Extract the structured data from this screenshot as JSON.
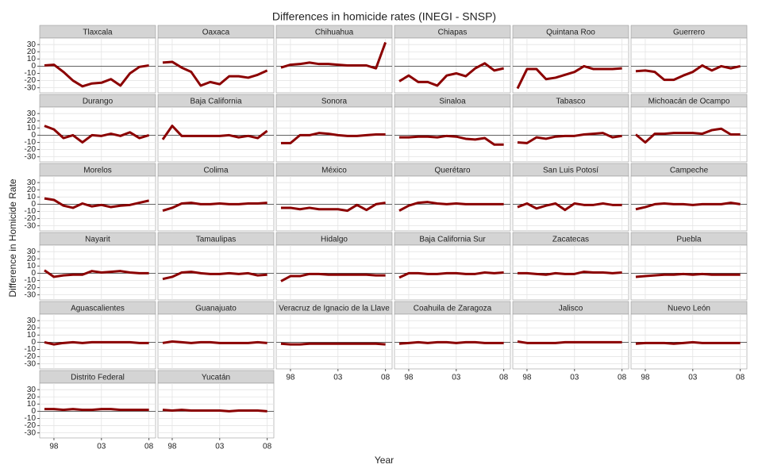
{
  "chart_data": {
    "type": "line",
    "title": "Differences in homicide rates (INEGI - SNSP)",
    "xlabel": "Year",
    "ylabel": "Difference in Homicide Rate",
    "x": [
      1997,
      1998,
      1999,
      2000,
      2001,
      2002,
      2003,
      2004,
      2005,
      2006,
      2007,
      2008
    ],
    "xlim": [
      1996.5,
      2008.7
    ],
    "xticks": [
      {
        "value": 1998,
        "label": "98"
      },
      {
        "value": 2003,
        "label": "03"
      },
      {
        "value": 2008,
        "label": "08"
      }
    ],
    "ylim": [
      -37,
      39
    ],
    "yticks": [
      -30,
      -20,
      -10,
      0,
      10,
      20,
      30
    ],
    "grid": true,
    "color": "#8b0000",
    "series": [
      {
        "name": "Tlaxcala",
        "values": [
          1,
          2,
          -8,
          -20,
          -28,
          -24,
          -23,
          -18,
          -27,
          -10,
          -1,
          1
        ]
      },
      {
        "name": "Oaxaca",
        "values": [
          5,
          6,
          -2,
          -8,
          -27,
          -22,
          -25,
          -14,
          -14,
          -16,
          -12,
          -6
        ]
      },
      {
        "name": "Chihuahua",
        "values": [
          -2,
          2,
          3,
          5,
          3,
          3,
          2,
          1,
          1,
          1,
          -3,
          33
        ]
      },
      {
        "name": "Chiapas",
        "values": [
          -21,
          -13,
          -22,
          -22,
          -27,
          -13,
          -10,
          -14,
          -3,
          4,
          -6,
          -3
        ]
      },
      {
        "name": "Quintana Roo",
        "values": [
          -31,
          -4,
          -4,
          -18,
          -16,
          -12,
          -8,
          0,
          -4,
          -4,
          -4,
          -3
        ]
      },
      {
        "name": "Guerrero",
        "values": [
          -7,
          -6,
          -8,
          -19,
          -19,
          -13,
          -8,
          1,
          -6,
          0,
          -3,
          0
        ]
      },
      {
        "name": "Durango",
        "values": [
          13,
          8,
          -4,
          0,
          -10,
          0,
          -1,
          2,
          -1,
          4,
          -4,
          0
        ]
      },
      {
        "name": "Baja California",
        "values": [
          -6,
          13,
          -1,
          -1,
          -1,
          -1,
          -1,
          0,
          -3,
          -1,
          -4,
          6
        ]
      },
      {
        "name": "Sonora",
        "values": [
          -11,
          -11,
          0,
          0,
          3,
          2,
          0,
          -1,
          -1,
          0,
          1,
          1
        ]
      },
      {
        "name": "Sinaloa",
        "values": [
          -3,
          -3,
          -2,
          -2,
          -3,
          -1,
          -2,
          -5,
          -6,
          -4,
          -13,
          -13
        ]
      },
      {
        "name": "Tabasco",
        "values": [
          -10,
          -11,
          -3,
          -5,
          -2,
          -1,
          -1,
          1,
          2,
          3,
          -3,
          -1
        ]
      },
      {
        "name": "Michoacán de Ocampo",
        "values": [
          1,
          -10,
          2,
          2,
          3,
          3,
          3,
          2,
          7,
          9,
          1,
          1
        ]
      },
      {
        "name": "Morelos",
        "values": [
          8,
          6,
          -2,
          -5,
          1,
          -3,
          -1,
          -4,
          -2,
          -1,
          2,
          5
        ]
      },
      {
        "name": "Colima",
        "values": [
          -9,
          -5,
          1,
          2,
          0,
          0,
          1,
          0,
          0,
          1,
          1,
          2
        ]
      },
      {
        "name": "México",
        "values": [
          -5,
          -5,
          -7,
          -5,
          -7,
          -7,
          -7,
          -9,
          -1,
          -8,
          0,
          2
        ]
      },
      {
        "name": "Querétaro",
        "values": [
          -9,
          -2,
          2,
          3,
          1,
          0,
          1,
          0,
          0,
          0,
          0,
          0
        ]
      },
      {
        "name": "San Luis Potosí",
        "values": [
          -4,
          1,
          -6,
          -2,
          1,
          -8,
          1,
          -1,
          -1,
          1,
          -1,
          -1
        ]
      },
      {
        "name": "Campeche",
        "values": [
          -7,
          -4,
          0,
          1,
          0,
          0,
          -1,
          0,
          0,
          0,
          2,
          0
        ]
      },
      {
        "name": "Nayarit",
        "values": [
          4,
          -5,
          -3,
          -2,
          -2,
          3,
          1,
          2,
          3,
          1,
          0,
          0
        ]
      },
      {
        "name": "Tamaulipas",
        "values": [
          -8,
          -5,
          1,
          2,
          0,
          -1,
          -1,
          0,
          -1,
          0,
          -3,
          -2
        ]
      },
      {
        "name": "Hidalgo",
        "values": [
          -11,
          -4,
          -4,
          -1,
          -1,
          -2,
          -2,
          -2,
          -2,
          -2,
          -3,
          -3
        ]
      },
      {
        "name": "Baja California Sur",
        "values": [
          -6,
          0,
          0,
          -1,
          -1,
          0,
          0,
          -1,
          -1,
          1,
          0,
          1
        ]
      },
      {
        "name": "Zacatecas",
        "values": [
          0,
          0,
          -1,
          -2,
          0,
          -1,
          -1,
          2,
          1,
          1,
          0,
          1
        ]
      },
      {
        "name": "Puebla",
        "values": [
          -5,
          -4,
          -3,
          -2,
          -2,
          -1,
          -2,
          -1,
          -2,
          -2,
          -2,
          -2
        ]
      },
      {
        "name": "Aguascalientes",
        "values": [
          0,
          -3,
          -1,
          0,
          -1,
          0,
          0,
          0,
          0,
          0,
          -1,
          -1
        ]
      },
      {
        "name": "Guanajuato",
        "values": [
          -1,
          1,
          0,
          -1,
          0,
          0,
          -1,
          -1,
          -1,
          -1,
          0,
          -1
        ]
      },
      {
        "name": "Veracruz de Ignacio de la Llave",
        "values": [
          -2,
          -3,
          -3,
          -2,
          -2,
          -2,
          -2,
          -2,
          -2,
          -2,
          -2,
          -3
        ]
      },
      {
        "name": "Coahuila de Zaragoza",
        "values": [
          -2,
          -1,
          0,
          -1,
          0,
          0,
          -1,
          0,
          0,
          -1,
          -1,
          -1
        ]
      },
      {
        "name": "Jalisco",
        "values": [
          1,
          -1,
          -1,
          -1,
          -1,
          0,
          0,
          0,
          0,
          0,
          0,
          0
        ]
      },
      {
        "name": "Nuevo León",
        "values": [
          -2,
          -1,
          -1,
          -1,
          -2,
          -1,
          0,
          -1,
          -1,
          -1,
          -1,
          -1
        ]
      },
      {
        "name": "Distrito Federal",
        "values": [
          3,
          3,
          2,
          3,
          2,
          2,
          3,
          3,
          2,
          2,
          2,
          2
        ]
      },
      {
        "name": "Yucatán",
        "values": [
          2,
          1,
          2,
          1,
          1,
          1,
          1,
          0,
          1,
          1,
          1,
          0
        ]
      }
    ]
  }
}
